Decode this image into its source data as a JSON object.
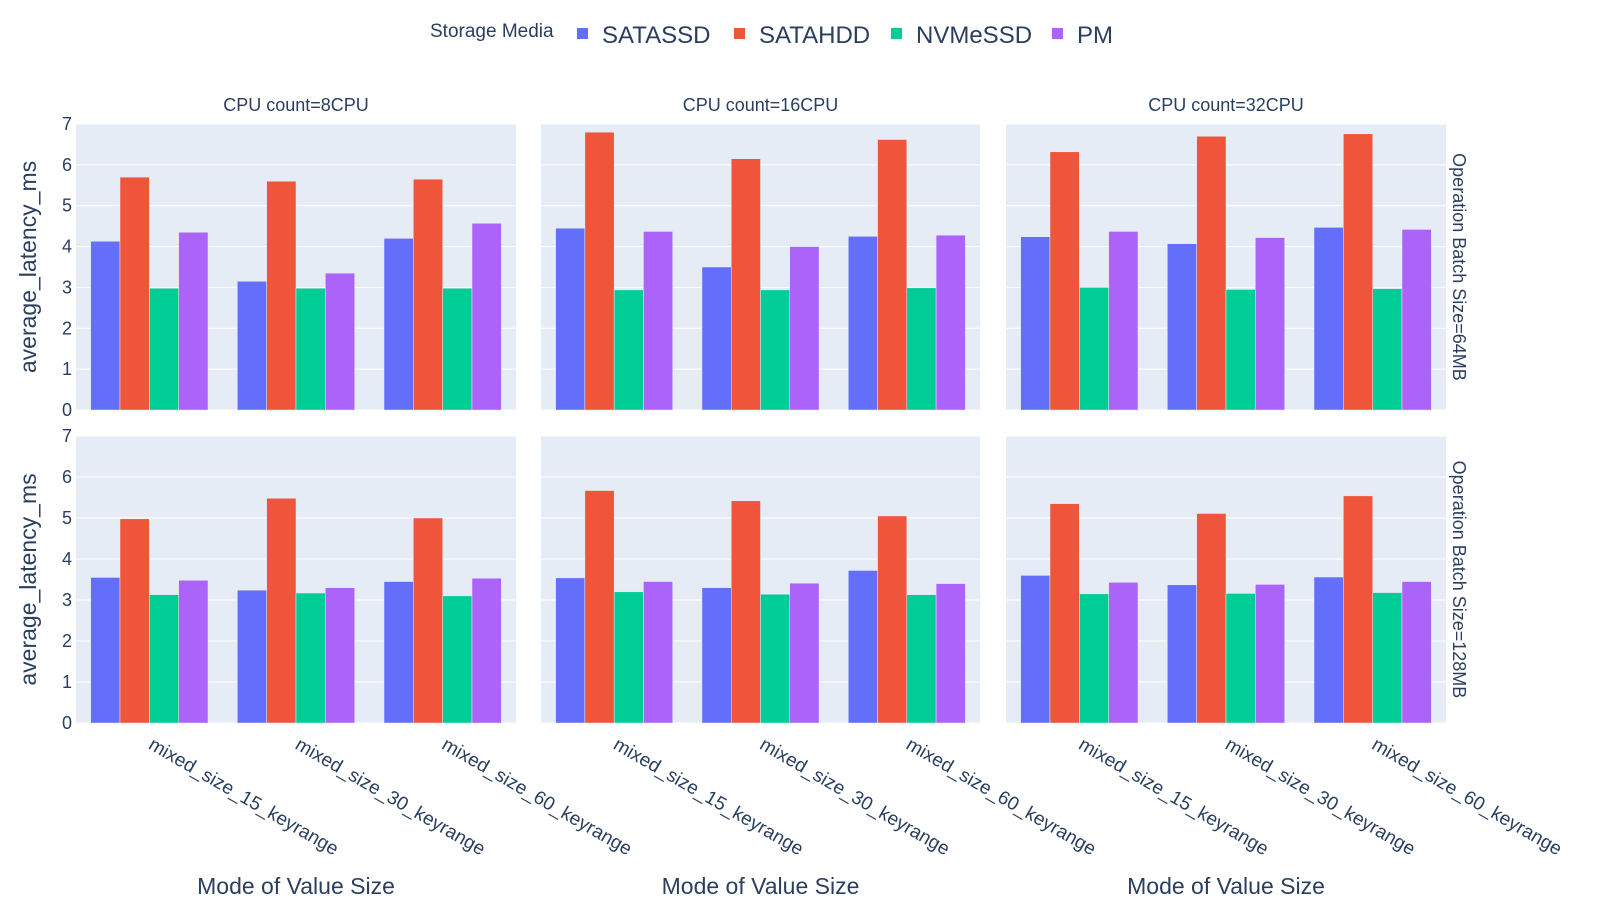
{
  "chart_data": {
    "type": "bar",
    "legend": {
      "title": "Storage Media",
      "placement": "top",
      "items": [
        {
          "name": "SATASSD",
          "color": "#636efa"
        },
        {
          "name": "SATAHDD",
          "color": "#EF553B"
        },
        {
          "name": "NVMeSSD",
          "color": "#00cc96"
        },
        {
          "name": "PM",
          "color": "#ab63fa"
        }
      ]
    },
    "categories": [
      "mixed_size_15_keyrange",
      "mixed_size_30_keyrange",
      "mixed_size_60_keyrange"
    ],
    "xlabel": "Mode of Value Size",
    "ylabel": "average_latency_ms",
    "ylim": [
      0,
      7
    ],
    "yticks": [
      "0",
      "1",
      "2",
      "3",
      "4",
      "5",
      "6",
      "7"
    ],
    "column_titles": [
      "CPU count=8CPU",
      "CPU count=16CPU",
      "CPU count=32CPU"
    ],
    "row_titles": [
      "Operation Batch Size=64MB",
      "Operation Batch Size=128MB"
    ],
    "grid": true,
    "panels": [
      {
        "row": 0,
        "col": 0,
        "series": [
          {
            "name": "SATASSD",
            "values": [
              4.13,
              3.15,
              4.2
            ]
          },
          {
            "name": "SATAHDD",
            "values": [
              5.7,
              5.6,
              5.65
            ]
          },
          {
            "name": "NVMeSSD",
            "values": [
              2.98,
              2.98,
              2.98
            ]
          },
          {
            "name": "PM",
            "values": [
              4.35,
              3.35,
              4.57
            ]
          }
        ]
      },
      {
        "row": 0,
        "col": 1,
        "series": [
          {
            "name": "SATASSD",
            "values": [
              4.45,
              3.5,
              4.25
            ]
          },
          {
            "name": "SATAHDD",
            "values": [
              6.8,
              6.15,
              6.62
            ]
          },
          {
            "name": "NVMeSSD",
            "values": [
              2.94,
              2.94,
              2.99
            ]
          },
          {
            "name": "PM",
            "values": [
              4.37,
              4.0,
              4.28
            ]
          }
        ]
      },
      {
        "row": 0,
        "col": 2,
        "series": [
          {
            "name": "SATASSD",
            "values": [
              4.24,
              4.07,
              4.47
            ]
          },
          {
            "name": "SATAHDD",
            "values": [
              6.32,
              6.7,
              6.76
            ]
          },
          {
            "name": "NVMeSSD",
            "values": [
              3.0,
              2.95,
              2.97
            ]
          },
          {
            "name": "PM",
            "values": [
              4.37,
              4.22,
              4.42
            ]
          }
        ]
      },
      {
        "row": 1,
        "col": 0,
        "series": [
          {
            "name": "SATASSD",
            "values": [
              3.55,
              3.24,
              3.45
            ]
          },
          {
            "name": "SATAHDD",
            "values": [
              4.98,
              5.48,
              5.0
            ]
          },
          {
            "name": "NVMeSSD",
            "values": [
              3.13,
              3.17,
              3.1
            ]
          },
          {
            "name": "PM",
            "values": [
              3.48,
              3.3,
              3.53
            ]
          }
        ]
      },
      {
        "row": 1,
        "col": 1,
        "series": [
          {
            "name": "SATASSD",
            "values": [
              3.54,
              3.3,
              3.72
            ]
          },
          {
            "name": "SATAHDD",
            "values": [
              5.67,
              5.42,
              5.05
            ]
          },
          {
            "name": "NVMeSSD",
            "values": [
              3.2,
              3.14,
              3.13
            ]
          },
          {
            "name": "PM",
            "values": [
              3.45,
              3.41,
              3.4
            ]
          }
        ]
      },
      {
        "row": 1,
        "col": 2,
        "series": [
          {
            "name": "SATASSD",
            "values": [
              3.6,
              3.37,
              3.56
            ]
          },
          {
            "name": "SATAHDD",
            "values": [
              5.35,
              5.11,
              5.54
            ]
          },
          {
            "name": "NVMeSSD",
            "values": [
              3.15,
              3.16,
              3.18
            ]
          },
          {
            "name": "PM",
            "values": [
              3.43,
              3.38,
              3.45
            ]
          }
        ]
      }
    ]
  }
}
